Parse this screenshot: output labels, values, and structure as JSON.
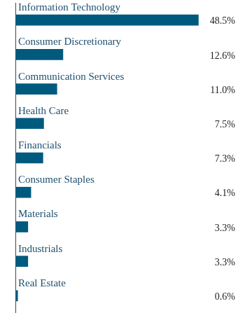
{
  "chart_data": {
    "type": "bar",
    "orientation": "horizontal",
    "categories": [
      "Information Technology",
      "Consumer Discretionary",
      "Communication Services",
      "Health Care",
      "Financials",
      "Consumer Staples",
      "Materials",
      "Industrials",
      "Real Estate"
    ],
    "values": [
      48.5,
      12.6,
      11.0,
      7.5,
      7.3,
      4.1,
      3.3,
      3.3,
      0.6
    ],
    "value_labels": [
      "48.5%",
      "12.6%",
      "11.0%",
      "7.5%",
      "7.3%",
      "4.1%",
      "3.3%",
      "3.3%",
      "0.6%"
    ],
    "color": "#005a7e",
    "xlim": [
      0,
      59
    ],
    "grid": false,
    "data_labels": true,
    "tick_labels": "y"
  }
}
